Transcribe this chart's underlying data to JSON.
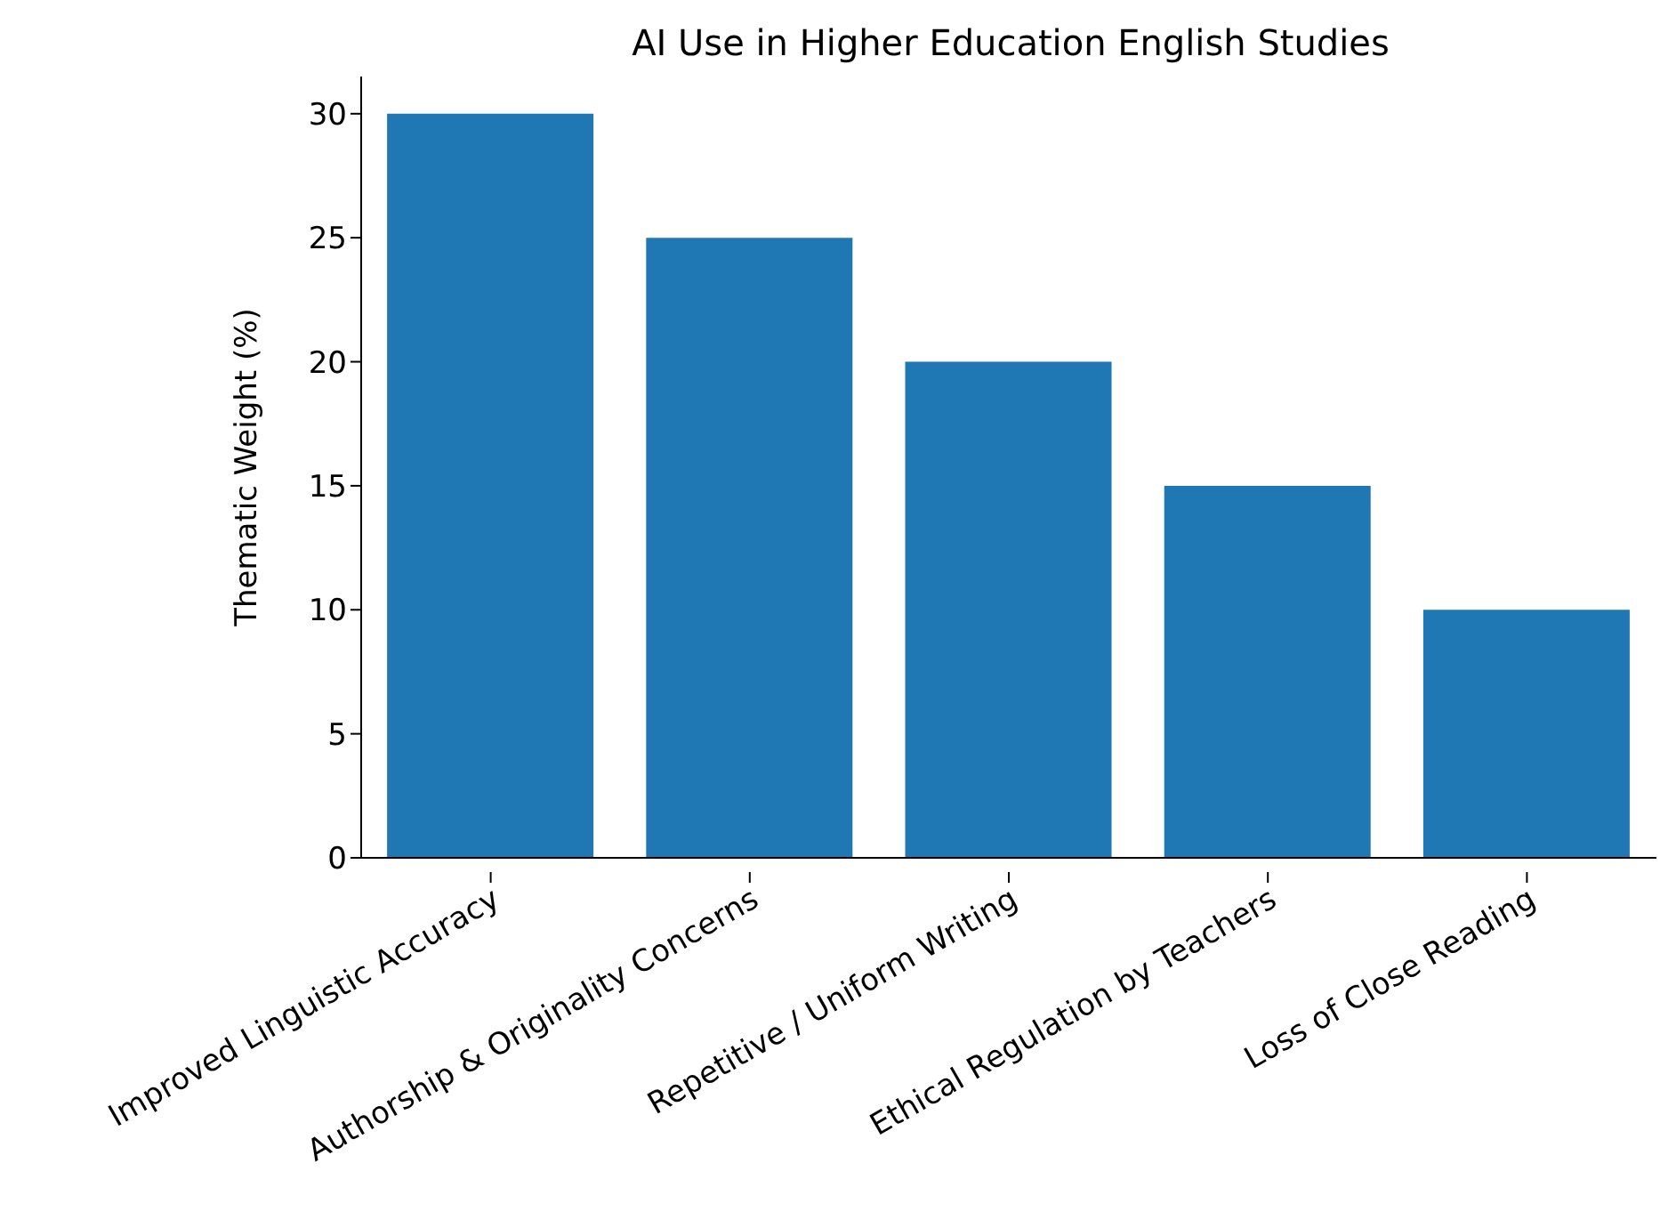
{
  "chart_data": {
    "type": "bar",
    "title": "AI Use in Higher Education English Studies",
    "ylabel": "Thematic Weight (%)",
    "categories": [
      "Improved Linguistic Accuracy",
      "Authorship & Originality Concerns",
      "Repetitive / Uniform Writing",
      "Ethical Regulation by Teachers",
      "Loss of Close Reading"
    ],
    "values": [
      30,
      25,
      20,
      15,
      10
    ],
    "color": "#1f77b4",
    "ylim": [
      0,
      31.5
    ],
    "yticks": [
      0,
      5,
      10,
      15,
      20,
      25,
      30
    ],
    "grid": false,
    "legend": false
  }
}
